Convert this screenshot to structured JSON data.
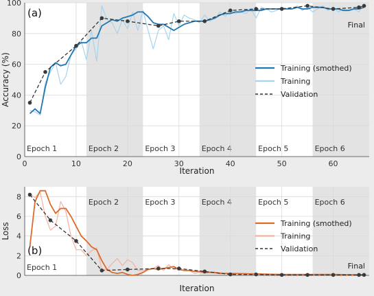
{
  "colors": {
    "figure_bg": "#ececec",
    "plot_bg": "#ffffff",
    "epoch_shade": "#e3e3e3",
    "grid": "#d9d9d9",
    "acc_smoothed": "#1f77b4",
    "acc_raw": "#a6d3ee",
    "loss_smoothed": "#dd6a2a",
    "loss_raw": "#f4b19e",
    "validation": "#333333",
    "val_marker": "#3a3a3a"
  },
  "chart_data": [
    {
      "type": "line",
      "panel_label": "(a)",
      "xlabel": "Iteration",
      "ylabel": "Accuracy (%)",
      "xlim": [
        0,
        67
      ],
      "ylim": [
        0,
        100
      ],
      "xticks": [
        0,
        10,
        20,
        30,
        40,
        50,
        60
      ],
      "yticks": [
        0,
        20,
        40,
        60,
        80,
        100
      ],
      "grid": true,
      "legend_position": "center-right",
      "annotation": "Final",
      "epochs": [
        {
          "label": "Epoch 1",
          "start": 0,
          "end": 12,
          "shaded": false
        },
        {
          "label": "Epoch 2",
          "start": 12,
          "end": 23,
          "shaded": true
        },
        {
          "label": "Epoch 3",
          "start": 23,
          "end": 34,
          "shaded": false
        },
        {
          "label": "Epoch 4",
          "start": 34,
          "end": 45,
          "shaded": true
        },
        {
          "label": "Epoch 5",
          "start": 45,
          "end": 56,
          "shaded": false
        },
        {
          "label": "Epoch 6",
          "start": 56,
          "end": 67,
          "shaded": true
        }
      ],
      "series": [
        {
          "name": "Training (smothed)",
          "style": "solid",
          "x": [
            1,
            2,
            3,
            4,
            5,
            6,
            7,
            8,
            9,
            10,
            11,
            12,
            13,
            14,
            15,
            16,
            17,
            18,
            19,
            20,
            21,
            22,
            23,
            24,
            25,
            26,
            27,
            28,
            29,
            30,
            31,
            32,
            33,
            34,
            35,
            36,
            37,
            38,
            39,
            40,
            41,
            42,
            43,
            44,
            45,
            46,
            47,
            48,
            49,
            50,
            51,
            52,
            53,
            54,
            55,
            56,
            57,
            58,
            59,
            60,
            61,
            62,
            63,
            64,
            65,
            66
          ],
          "y": [
            28,
            31,
            28,
            45,
            58,
            61,
            59,
            60,
            66,
            72,
            74,
            74,
            77,
            77,
            85,
            87,
            89,
            88,
            90,
            91,
            92,
            94,
            94,
            91,
            87,
            86,
            86,
            84,
            82,
            84,
            86,
            87,
            88,
            88,
            88,
            89,
            90,
            92,
            93,
            93,
            94,
            94,
            95,
            95,
            95,
            95,
            96,
            96,
            96,
            96,
            96,
            96,
            97,
            96,
            96,
            97,
            97,
            97,
            96,
            96,
            96,
            95,
            95,
            96,
            96,
            97
          ]
        },
        {
          "name": "Training",
          "style": "solid",
          "x": [
            1,
            2,
            3,
            4,
            5,
            6,
            7,
            8,
            9,
            10,
            11,
            12,
            13,
            14,
            15,
            16,
            17,
            18,
            19,
            20,
            21,
            22,
            23,
            24,
            25,
            26,
            27,
            28,
            29,
            30,
            31,
            32,
            33,
            34,
            35,
            36,
            37,
            38,
            39,
            40,
            41,
            42,
            43,
            44,
            45,
            46,
            47,
            48,
            49,
            50,
            51,
            52,
            53,
            54,
            55,
            56,
            57,
            58,
            59,
            60,
            61,
            62,
            63,
            64,
            65,
            66
          ],
          "y": [
            30,
            29,
            27,
            48,
            55,
            61,
            47,
            52,
            66,
            70,
            75,
            63,
            82,
            62,
            98,
            89,
            87,
            80,
            89,
            83,
            94,
            82,
            95,
            82,
            70,
            82,
            85,
            76,
            93,
            85,
            92,
            90,
            89,
            87,
            92,
            88,
            90,
            94,
            91,
            95,
            93,
            94,
            93,
            96,
            90,
            97,
            96,
            94,
            95,
            97,
            96,
            96,
            98,
            95,
            97,
            94,
            96,
            98,
            95,
            97,
            94,
            96,
            95,
            96,
            94,
            99
          ]
        },
        {
          "name": "Validation",
          "style": "dashed",
          "x": [
            1,
            4,
            10,
            15,
            20,
            26,
            30,
            35,
            40,
            45,
            50,
            55,
            60,
            65,
            66
          ],
          "y": [
            35,
            55,
            72,
            90,
            88,
            85,
            88,
            88,
            95,
            96,
            96,
            98,
            96,
            97,
            98
          ]
        }
      ]
    },
    {
      "type": "line",
      "panel_label": "(b)",
      "xlabel": "Iteration",
      "ylabel": "Loss",
      "xlim": [
        0,
        67
      ],
      "ylim": [
        0,
        9
      ],
      "yticks": [
        0,
        2,
        4,
        6,
        8
      ],
      "grid": true,
      "legend_position": "center-right",
      "annotation": "Final",
      "epochs": [
        {
          "label": "Epoch 1",
          "start": 0,
          "end": 12,
          "shaded": false
        },
        {
          "label": "Epoch 2",
          "start": 12,
          "end": 23,
          "shaded": true
        },
        {
          "label": "Epoch 3",
          "start": 23,
          "end": 34,
          "shaded": false
        },
        {
          "label": "Epoch 4",
          "start": 34,
          "end": 45,
          "shaded": true
        },
        {
          "label": "Epoch 5",
          "start": 45,
          "end": 56,
          "shaded": false
        },
        {
          "label": "Epoch 6",
          "start": 56,
          "end": 67,
          "shaded": true
        }
      ],
      "series": [
        {
          "name": "Training (smothed)",
          "style": "solid",
          "x": [
            1,
            2,
            3,
            4,
            5,
            6,
            7,
            8,
            9,
            10,
            11,
            12,
            13,
            14,
            15,
            16,
            17,
            18,
            19,
            20,
            21,
            22,
            23,
            24,
            25,
            26,
            27,
            28,
            29,
            30,
            31,
            32,
            33,
            34,
            35,
            36,
            37,
            38,
            39,
            40,
            45,
            50,
            55,
            60,
            65,
            66
          ],
          "y": [
            2.9,
            7.5,
            8.6,
            8.6,
            7.2,
            6.3,
            6.8,
            6.8,
            6.0,
            5.0,
            4.0,
            3.5,
            2.9,
            2.6,
            1.5,
            0.6,
            0.3,
            0.2,
            0.3,
            0.1,
            0.0,
            0.1,
            0.3,
            0.6,
            0.7,
            0.6,
            0.7,
            0.8,
            0.9,
            0.6,
            0.5,
            0.5,
            0.4,
            0.4,
            0.3,
            0.3,
            0.3,
            0.2,
            0.2,
            0.2,
            0.15,
            0.1,
            0.1,
            0.1,
            0.05,
            0.05
          ]
        },
        {
          "name": "Training",
          "style": "solid",
          "x": [
            1,
            2,
            3,
            4,
            5,
            6,
            7,
            8,
            9,
            10,
            11,
            12,
            13,
            14,
            15,
            16,
            17,
            18,
            19,
            20,
            21,
            22,
            23,
            24,
            25,
            26,
            27,
            28,
            29,
            30,
            31,
            32,
            33,
            34,
            35,
            36,
            37,
            38,
            39,
            40,
            45,
            50,
            55,
            60,
            65,
            66
          ],
          "y": [
            8.3,
            7.9,
            8.5,
            6.0,
            4.6,
            5.0,
            7.5,
            6.5,
            4.0,
            2.6,
            2.6,
            2.0,
            2.5,
            2.8,
            0.6,
            0.6,
            1.2,
            1.7,
            1.0,
            1.6,
            1.3,
            0.5,
            0.5,
            0.6,
            0.7,
            1.0,
            0.5,
            1.1,
            0.6,
            0.7,
            0.5,
            0.5,
            0.2,
            0.3,
            0.2,
            0.4,
            0.2,
            0.3,
            0.2,
            0.2,
            0.1,
            0.1,
            0.05,
            0.1,
            0.05,
            0.1
          ]
        },
        {
          "name": "Validation",
          "style": "dashed",
          "x": [
            1,
            5,
            10,
            15,
            20,
            26,
            30,
            35,
            40,
            45,
            50,
            55,
            60,
            65,
            66
          ],
          "y": [
            8.2,
            5.6,
            3.5,
            0.5,
            0.6,
            0.7,
            0.7,
            0.4,
            0.1,
            0.1,
            0.05,
            0.05,
            0.05,
            0.05,
            0.05
          ]
        }
      ]
    }
  ]
}
